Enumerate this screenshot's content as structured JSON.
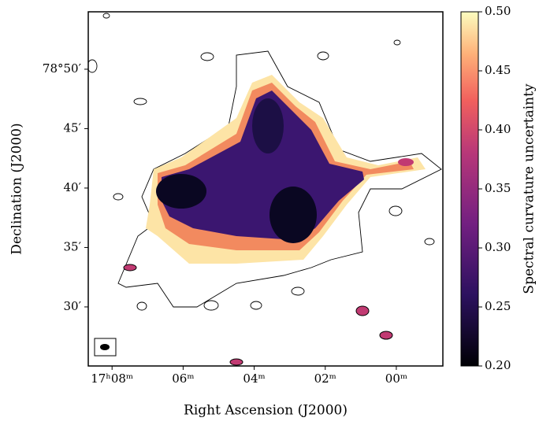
{
  "chart_data": {
    "type": "image",
    "xlabel": "Right Ascension (J2000)",
    "ylabel": "Declination (J2000)",
    "xlim": [
      8.67,
      -1.31
    ],
    "xticks": [
      {
        "value": 8,
        "label": "17ʰ08ᵐ"
      },
      {
        "value": 6,
        "label": "06ᵐ"
      },
      {
        "value": 4,
        "label": "04ᵐ"
      },
      {
        "value": 2,
        "label": "02ᵐ"
      },
      {
        "value": 0,
        "label": "00ᵐ"
      }
    ],
    "ylim": [
      25.03,
      54.83
    ],
    "yticks": [
      {
        "value": 50,
        "label": "78°50′"
      },
      {
        "value": 45,
        "label": "45′"
      },
      {
        "value": 40,
        "label": "40′"
      },
      {
        "value": 35,
        "label": "35′"
      },
      {
        "value": 30,
        "label": "30′"
      }
    ],
    "colorbar": {
      "label": "Spectral curvature uncertainty",
      "clim": [
        0.2,
        0.5
      ],
      "ticks": [
        {
          "value": 0.2,
          "label": "0.20"
        },
        {
          "value": 0.25,
          "label": "0.25"
        },
        {
          "value": 0.3,
          "label": "0.30"
        },
        {
          "value": 0.35,
          "label": "0.35"
        },
        {
          "value": 0.4,
          "label": "0.40"
        },
        {
          "value": 0.45,
          "label": "0.45"
        },
        {
          "value": 0.5,
          "label": "0.50"
        }
      ]
    }
  }
}
